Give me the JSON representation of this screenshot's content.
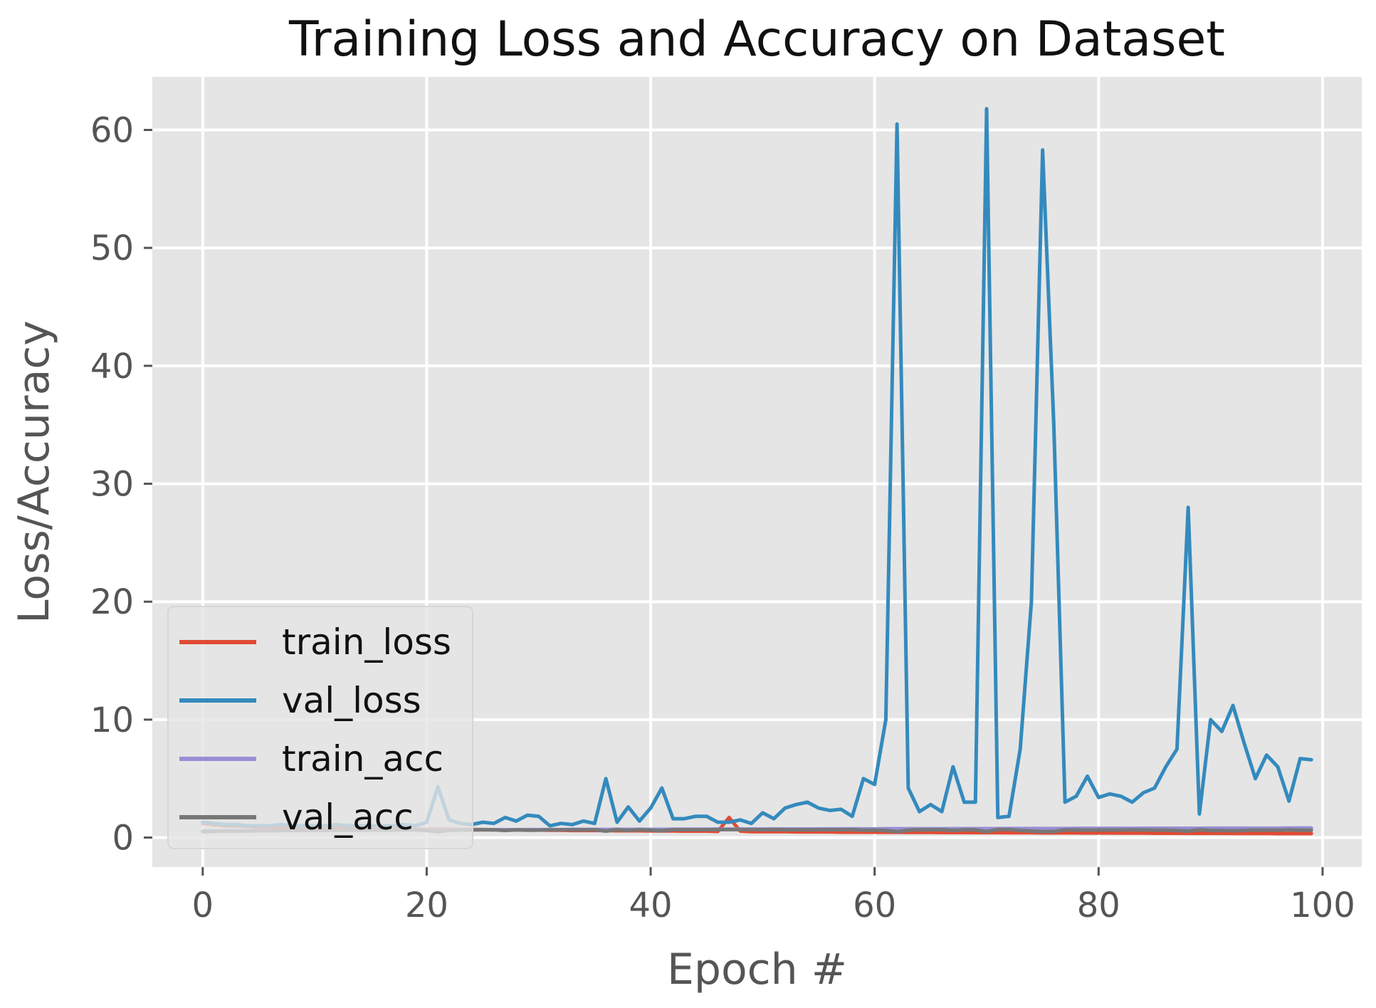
{
  "chart_data": {
    "type": "line",
    "title": "Training Loss and Accuracy on Dataset",
    "xlabel": "Epoch #",
    "ylabel": "Loss/Accuracy",
    "xlim": [
      -4.5,
      103.5
    ],
    "ylim": [
      -2.5,
      64.5
    ],
    "xticks": [
      0,
      20,
      40,
      60,
      80,
      100
    ],
    "yticks": [
      0,
      10,
      20,
      30,
      40,
      50,
      60
    ],
    "grid": true,
    "legend_position": "lower-left",
    "colors": {
      "background": "#E5E5E5",
      "grid": "#FFFFFF",
      "train_loss": "#E24A33",
      "val_loss": "#348ABD",
      "train_acc": "#988ED5",
      "val_acc": "#777777"
    },
    "x": [
      0,
      1,
      2,
      3,
      4,
      5,
      6,
      7,
      8,
      9,
      10,
      11,
      12,
      13,
      14,
      15,
      16,
      17,
      18,
      19,
      20,
      21,
      22,
      23,
      24,
      25,
      26,
      27,
      28,
      29,
      30,
      31,
      32,
      33,
      34,
      35,
      36,
      37,
      38,
      39,
      40,
      41,
      42,
      43,
      44,
      45,
      46,
      47,
      48,
      49,
      50,
      51,
      52,
      53,
      54,
      55,
      56,
      57,
      58,
      59,
      60,
      61,
      62,
      63,
      64,
      65,
      66,
      67,
      68,
      69,
      70,
      71,
      72,
      73,
      74,
      75,
      76,
      77,
      78,
      79,
      80,
      81,
      82,
      83,
      84,
      85,
      86,
      87,
      88,
      89,
      90,
      91,
      92,
      93,
      94,
      95,
      96,
      97,
      98,
      99
    ],
    "series": [
      {
        "name": "train_loss",
        "color": "#E24A33",
        "values": [
          1.2,
          1.1,
          1.0,
          1.0,
          0.95,
          0.9,
          0.9,
          0.85,
          0.85,
          0.8,
          0.8,
          0.8,
          0.78,
          0.78,
          0.75,
          0.75,
          0.75,
          0.72,
          0.72,
          0.7,
          0.7,
          0.72,
          0.7,
          0.68,
          0.68,
          0.68,
          0.66,
          0.66,
          0.65,
          0.65,
          0.65,
          0.62,
          0.62,
          0.6,
          0.6,
          0.6,
          0.6,
          0.58,
          0.58,
          0.58,
          0.56,
          0.56,
          0.56,
          0.55,
          0.55,
          0.55,
          0.52,
          1.7,
          0.55,
          0.5,
          0.5,
          0.5,
          0.5,
          0.48,
          0.48,
          0.48,
          0.48,
          0.46,
          0.46,
          0.46,
          0.45,
          0.45,
          0.45,
          0.44,
          0.44,
          0.44,
          0.43,
          0.43,
          0.43,
          0.42,
          0.42,
          0.42,
          0.41,
          0.41,
          0.41,
          0.4,
          0.4,
          0.4,
          0.4,
          0.39,
          0.39,
          0.39,
          0.38,
          0.38,
          0.38,
          0.37,
          0.37,
          0.37,
          0.36,
          0.36,
          0.36,
          0.36,
          0.35,
          0.35,
          0.35,
          0.35,
          0.34,
          0.34,
          0.34,
          0.34
        ]
      },
      {
        "name": "val_loss",
        "color": "#348ABD",
        "values": [
          1.3,
          1.2,
          1.1,
          1.1,
          1.0,
          1.0,
          1.0,
          1.1,
          1.0,
          1.0,
          1.0,
          1.0,
          1.1,
          1.0,
          1.0,
          1.0,
          1.0,
          1.0,
          1.1,
          1.0,
          1.3,
          4.3,
          1.5,
          1.2,
          1.1,
          1.3,
          1.2,
          1.7,
          1.4,
          1.9,
          1.8,
          1.0,
          1.2,
          1.1,
          1.4,
          1.2,
          5.0,
          1.3,
          2.6,
          1.4,
          2.5,
          4.2,
          1.6,
          1.6,
          1.8,
          1.8,
          1.3,
          1.3,
          1.5,
          1.2,
          2.1,
          1.6,
          2.5,
          2.8,
          3.0,
          2.5,
          2.3,
          2.4,
          1.8,
          5.0,
          4.5,
          10.0,
          60.5,
          4.2,
          2.2,
          2.8,
          2.2,
          6.0,
          3.0,
          3.0,
          61.8,
          1.7,
          1.8,
          7.5,
          20.0,
          58.3,
          35.0,
          3.0,
          3.5,
          5.2,
          3.4,
          3.7,
          3.5,
          3.0,
          3.8,
          4.2,
          6.0,
          7.5,
          28.0,
          2.0,
          10.0,
          9.0,
          11.2,
          8.0,
          5.0,
          7.0,
          6.0,
          3.1,
          6.7,
          6.6
        ]
      },
      {
        "name": "train_acc",
        "color": "#988ED5",
        "values": [
          0.55,
          0.56,
          0.57,
          0.58,
          0.58,
          0.59,
          0.6,
          0.6,
          0.61,
          0.61,
          0.62,
          0.62,
          0.63,
          0.63,
          0.63,
          0.64,
          0.64,
          0.64,
          0.65,
          0.65,
          0.65,
          0.65,
          0.66,
          0.66,
          0.66,
          0.67,
          0.67,
          0.67,
          0.67,
          0.68,
          0.68,
          0.68,
          0.68,
          0.69,
          0.69,
          0.69,
          0.69,
          0.7,
          0.7,
          0.7,
          0.7,
          0.7,
          0.71,
          0.71,
          0.71,
          0.71,
          0.72,
          0.72,
          0.72,
          0.72,
          0.72,
          0.73,
          0.73,
          0.73,
          0.73,
          0.73,
          0.74,
          0.74,
          0.74,
          0.74,
          0.74,
          0.75,
          0.75,
          0.75,
          0.75,
          0.75,
          0.75,
          0.76,
          0.76,
          0.76,
          0.76,
          0.76,
          0.77,
          0.77,
          0.77,
          0.77,
          0.77,
          0.77,
          0.78,
          0.78,
          0.78,
          0.78,
          0.78,
          0.78,
          0.79,
          0.79,
          0.79,
          0.79,
          0.79,
          0.79,
          0.8,
          0.8,
          0.8,
          0.8,
          0.8,
          0.8,
          0.8,
          0.81,
          0.81,
          0.81
        ]
      },
      {
        "name": "val_acc",
        "color": "#777777",
        "values": [
          0.5,
          0.52,
          0.55,
          0.55,
          0.56,
          0.58,
          0.58,
          0.6,
          0.6,
          0.61,
          0.62,
          0.62,
          0.63,
          0.63,
          0.63,
          0.64,
          0.64,
          0.64,
          0.65,
          0.65,
          0.6,
          0.5,
          0.62,
          0.64,
          0.65,
          0.65,
          0.66,
          0.6,
          0.65,
          0.62,
          0.63,
          0.66,
          0.66,
          0.66,
          0.65,
          0.66,
          0.55,
          0.67,
          0.6,
          0.67,
          0.62,
          0.58,
          0.67,
          0.67,
          0.67,
          0.67,
          0.68,
          0.68,
          0.68,
          0.68,
          0.66,
          0.68,
          0.66,
          0.65,
          0.65,
          0.66,
          0.67,
          0.67,
          0.68,
          0.62,
          0.63,
          0.6,
          0.5,
          0.62,
          0.66,
          0.65,
          0.67,
          0.6,
          0.65,
          0.65,
          0.5,
          0.68,
          0.68,
          0.6,
          0.55,
          0.5,
          0.52,
          0.65,
          0.64,
          0.62,
          0.64,
          0.64,
          0.64,
          0.65,
          0.64,
          0.63,
          0.62,
          0.6,
          0.55,
          0.66,
          0.6,
          0.6,
          0.58,
          0.6,
          0.63,
          0.62,
          0.62,
          0.65,
          0.62,
          0.62
        ]
      }
    ]
  }
}
